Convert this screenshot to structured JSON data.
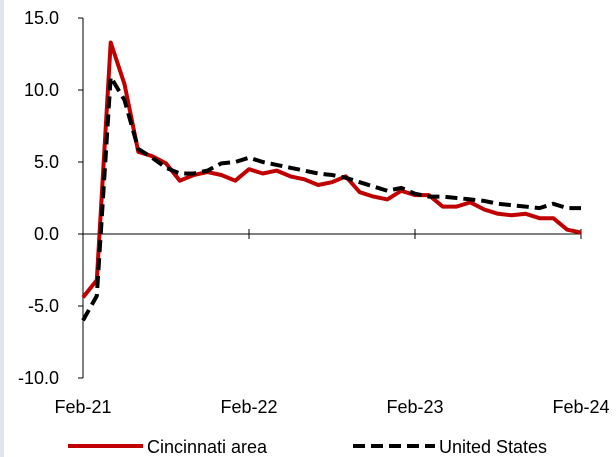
{
  "chart_data": {
    "type": "line",
    "title": "",
    "xlabel": "",
    "ylabel": "",
    "ylim": [
      -10,
      15
    ],
    "yticks": [
      "15.0",
      "10.0",
      "5.0",
      "0.0",
      "-5.0",
      "-10.0"
    ],
    "xticks": [
      "Feb-21",
      "Feb-22",
      "Feb-23",
      "Feb-24"
    ],
    "grid": false,
    "legend_position": "bottom",
    "x": [
      "Feb-21",
      "Mar-21",
      "Apr-21",
      "May-21",
      "Jun-21",
      "Jul-21",
      "Aug-21",
      "Sep-21",
      "Oct-21",
      "Nov-21",
      "Dec-21",
      "Jan-22",
      "Feb-22",
      "Mar-22",
      "Apr-22",
      "May-22",
      "Jun-22",
      "Jul-22",
      "Aug-22",
      "Sep-22",
      "Oct-22",
      "Nov-22",
      "Dec-22",
      "Jan-23",
      "Feb-23",
      "Mar-23",
      "Apr-23",
      "May-23",
      "Jun-23",
      "Jul-23",
      "Aug-23",
      "Sep-23",
      "Oct-23",
      "Nov-23",
      "Dec-23",
      "Jan-24",
      "Feb-24"
    ],
    "series": [
      {
        "name": "Cincinnati area",
        "color": "#c00000",
        "dash": "solid",
        "values": [
          -4.4,
          -3.2,
          13.3,
          10.4,
          5.7,
          5.4,
          4.9,
          3.7,
          4.1,
          4.3,
          4.1,
          3.7,
          4.5,
          4.2,
          4.4,
          4.0,
          3.8,
          3.4,
          3.6,
          4.0,
          2.9,
          2.6,
          2.4,
          3.0,
          2.7,
          2.7,
          1.9,
          1.9,
          2.2,
          1.7,
          1.4,
          1.3,
          1.4,
          1.1,
          1.1,
          0.3,
          0.1
        ]
      },
      {
        "name": "United States",
        "color": "#000000",
        "dash": "dashed",
        "values": [
          -6.0,
          -4.3,
          10.9,
          9.3,
          5.9,
          5.3,
          4.6,
          4.2,
          4.2,
          4.4,
          4.9,
          5.0,
          5.3,
          5.0,
          4.8,
          4.6,
          4.4,
          4.2,
          4.1,
          3.9,
          3.6,
          3.3,
          3.0,
          3.2,
          2.8,
          2.6,
          2.6,
          2.5,
          2.4,
          2.3,
          2.1,
          2.0,
          1.9,
          1.8,
          2.1,
          1.8,
          1.8
        ]
      }
    ]
  }
}
